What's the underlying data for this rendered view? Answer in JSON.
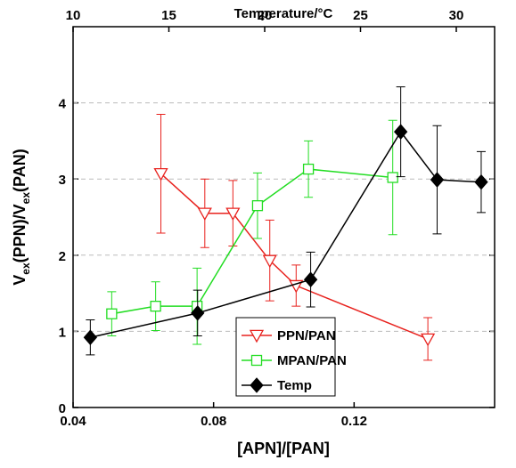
{
  "chart_data": {
    "type": "line",
    "xlabel": "[APN]/[PAN]",
    "x2label": "Temperature/°C",
    "ylabel": [
      "V",
      "ex",
      "(PPN)/V",
      "ex",
      "(PAN)"
    ],
    "xlim": [
      0.04,
      0.16
    ],
    "xticks": [
      0.04,
      0.08,
      0.12
    ],
    "x2lim": [
      10,
      32
    ],
    "x2ticks": [
      10,
      15,
      20,
      25,
      30
    ],
    "ylim": [
      0,
      5
    ],
    "yticks": [
      0,
      1,
      2,
      3,
      4
    ],
    "grid": true,
    "legend": "bottom-center",
    "series": [
      {
        "name": "PPN/PAN",
        "color": "#e8221e",
        "marker": "triangle-down",
        "x": [
          0.065,
          0.0775,
          0.0855,
          0.096,
          0.1035,
          0.141
        ],
        "values": [
          3.07,
          2.55,
          2.55,
          1.93,
          1.6,
          0.9
        ],
        "errors": [
          0.78,
          0.45,
          0.43,
          0.53,
          0.27,
          0.28
        ]
      },
      {
        "name": "MPAN/PAN",
        "color": "#22dd22",
        "marker": "square",
        "x": [
          0.051,
          0.0635,
          0.0753,
          0.0925,
          0.107,
          0.131
        ],
        "values": [
          1.23,
          1.33,
          1.33,
          2.65,
          3.13,
          3.02
        ],
        "errors": [
          0.29,
          0.32,
          0.5,
          0.43,
          0.37,
          0.75
        ]
      },
      {
        "name": "Temp",
        "color": "#000000",
        "marker": "diamond",
        "axis": "x2",
        "x": [
          10.9,
          16.5,
          22.4,
          27.1,
          29.0,
          31.3
        ],
        "values": [
          0.92,
          1.24,
          1.68,
          3.62,
          2.99,
          2.96
        ],
        "errors": [
          0.23,
          0.3,
          0.36,
          0.59,
          0.71,
          0.4
        ]
      }
    ]
  }
}
